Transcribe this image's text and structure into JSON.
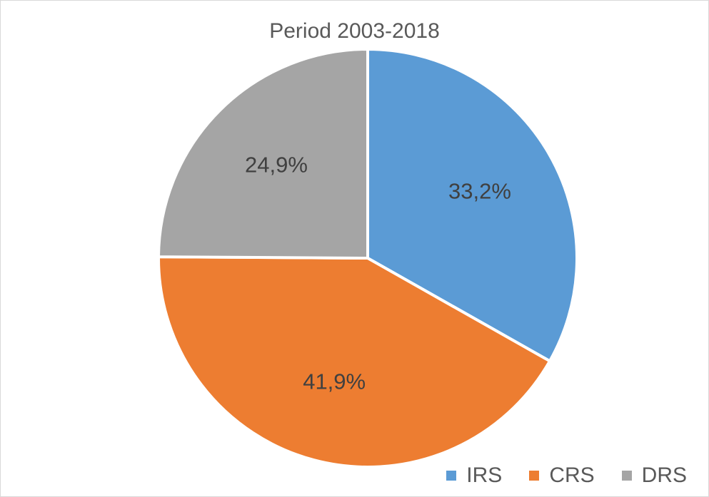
{
  "chart_data": {
    "type": "pie",
    "title": "Period 2003-2018",
    "categories": [
      "IRS",
      "CRS",
      "DRS"
    ],
    "values": [
      33.2,
      41.9,
      24.9
    ],
    "labels": [
      "33,2%",
      "41,9%",
      "24,9%"
    ],
    "colors": [
      "#5b9bd5",
      "#ed7d31",
      "#a5a5a5"
    ],
    "legend": "bottom-right"
  }
}
